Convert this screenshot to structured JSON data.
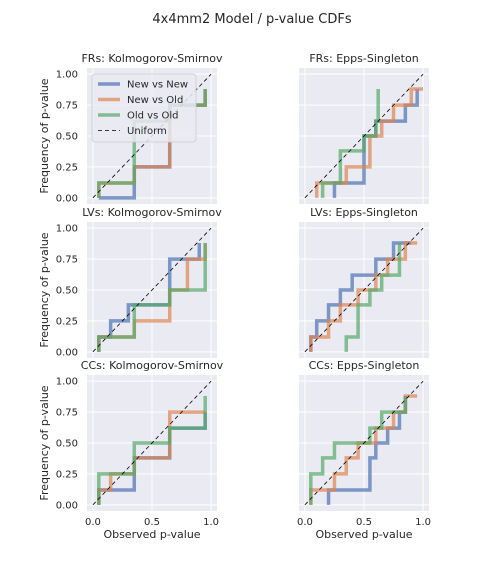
{
  "figure_title": "4x4mm2 Model / p-value CDFs",
  "y_axis_label": "Frequency of p-value",
  "x_axis_label": "Observed p-value",
  "x_tick_labels": [
    "0.0",
    "0.5",
    "1.0"
  ],
  "y_tick_labels": [
    "0.00",
    "0.25",
    "0.50",
    "0.75",
    "1.00"
  ],
  "legend": [
    {
      "label": "New vs New",
      "color": "#4c72b0"
    },
    {
      "label": "New vs Old",
      "color": "#dd8452"
    },
    {
      "label": "Old vs Old",
      "color": "#55a868"
    },
    {
      "label": "Uniform",
      "color": "#000000"
    }
  ],
  "chart_data": [
    {
      "type": "line",
      "title": "FRs: Kolmogorov-Smirnov",
      "xlim": [
        -0.05,
        1.05
      ],
      "ylim": [
        -0.05,
        1.05
      ],
      "series": [
        {
          "name": "New vs New",
          "color": "#4c72b0",
          "x": [
            0.05,
            0.35,
            0.65,
            0.95
          ],
          "y": [
            0.0,
            0.25,
            0.75,
            0.88
          ]
        },
        {
          "name": "New vs Old",
          "color": "#dd8452",
          "x": [
            0.05,
            0.35,
            0.65,
            0.65,
            0.95
          ],
          "y": [
            0.12,
            0.25,
            0.62,
            0.75,
            0.88
          ]
        },
        {
          "name": "Old vs Old",
          "color": "#55a868",
          "x": [
            0.05,
            0.35,
            0.65,
            0.95
          ],
          "y": [
            0.12,
            0.62,
            0.75,
            0.88
          ]
        },
        {
          "name": "Uniform",
          "color": "#000000",
          "x": [
            0,
            1
          ],
          "y": [
            0,
            1
          ]
        }
      ]
    },
    {
      "type": "line",
      "title": "FRs: Epps-Singleton",
      "xlim": [
        -0.05,
        1.05
      ],
      "ylim": [
        -0.05,
        1.05
      ],
      "series": [
        {
          "name": "New vs New",
          "color": "#4c72b0",
          "x": [
            0.25,
            0.5,
            0.6,
            0.85,
            0.95
          ],
          "y": [
            0.12,
            0.5,
            0.62,
            0.75,
            0.88
          ]
        },
        {
          "name": "New vs Old",
          "color": "#dd8452",
          "x": [
            0.1,
            0.35,
            0.55,
            0.65,
            0.75,
            0.9,
            1.0
          ],
          "y": [
            0.12,
            0.25,
            0.5,
            0.62,
            0.75,
            0.88,
            0.88
          ]
        },
        {
          "name": "Old vs Old",
          "color": "#55a868",
          "x": [
            0.15,
            0.3,
            0.5,
            0.6,
            0.62
          ],
          "y": [
            0.12,
            0.38,
            0.5,
            0.62,
            0.88
          ]
        },
        {
          "name": "Uniform",
          "color": "#000000",
          "x": [
            0,
            1
          ],
          "y": [
            0,
            1
          ]
        }
      ]
    },
    {
      "type": "line",
      "title": "LVs: Kolmogorov-Smirnov",
      "xlim": [
        -0.05,
        1.05
      ],
      "ylim": [
        -0.05,
        1.05
      ],
      "series": [
        {
          "name": "New vs New",
          "color": "#4c72b0",
          "x": [
            0.05,
            0.15,
            0.3,
            0.65,
            0.9
          ],
          "y": [
            0.12,
            0.25,
            0.38,
            0.75,
            0.88
          ]
        },
        {
          "name": "New vs Old",
          "color": "#dd8452",
          "x": [
            0.05,
            0.35,
            0.65,
            0.8,
            0.95
          ],
          "y": [
            0.12,
            0.25,
            0.5,
            0.75,
            0.88
          ]
        },
        {
          "name": "Old vs Old",
          "color": "#55a868",
          "x": [
            0.05,
            0.35,
            0.65,
            0.95
          ],
          "y": [
            0.12,
            0.38,
            0.5,
            0.88
          ]
        },
        {
          "name": "Uniform",
          "color": "#000000",
          "x": [
            0,
            1
          ],
          "y": [
            0,
            1
          ]
        }
      ]
    },
    {
      "type": "line",
      "title": "LVs: Epps-Singleton",
      "xlim": [
        -0.05,
        1.05
      ],
      "ylim": [
        -0.05,
        1.05
      ],
      "series": [
        {
          "name": "New vs New",
          "color": "#4c72b0",
          "x": [
            0.05,
            0.1,
            0.2,
            0.3,
            0.35,
            0.4,
            0.6,
            0.65,
            0.75,
            0.9
          ],
          "y": [
            0.12,
            0.25,
            0.38,
            0.5,
            0.5,
            0.62,
            0.75,
            0.75,
            0.88,
            0.88
          ]
        },
        {
          "name": "New vs Old",
          "color": "#dd8452",
          "x": [
            0.05,
            0.2,
            0.3,
            0.45,
            0.6,
            0.7,
            0.85,
            0.95
          ],
          "y": [
            0.12,
            0.25,
            0.38,
            0.5,
            0.62,
            0.75,
            0.88,
            0.88
          ]
        },
        {
          "name": "Old vs Old",
          "color": "#55a868",
          "x": [
            0.35,
            0.45,
            0.55,
            0.65,
            0.8
          ],
          "y": [
            0.12,
            0.38,
            0.5,
            0.62,
            0.88
          ]
        },
        {
          "name": "Uniform",
          "color": "#000000",
          "x": [
            0,
            1
          ],
          "y": [
            0,
            1
          ]
        }
      ]
    },
    {
      "type": "line",
      "title": "CCs: Kolmogorov-Smirnov",
      "xlim": [
        -0.05,
        1.05
      ],
      "ylim": [
        -0.05,
        1.05
      ],
      "series": [
        {
          "name": "New vs New",
          "color": "#4c72b0",
          "x": [
            0.05,
            0.35,
            0.65,
            0.95
          ],
          "y": [
            0.12,
            0.38,
            0.62,
            0.75
          ]
        },
        {
          "name": "New vs Old",
          "color": "#dd8452",
          "x": [
            0.05,
            0.15,
            0.35,
            0.65,
            0.95
          ],
          "y": [
            0.12,
            0.25,
            0.38,
            0.75,
            0.75
          ]
        },
        {
          "name": "Old vs Old",
          "color": "#55a868",
          "x": [
            0.05,
            0.35,
            0.65,
            0.95
          ],
          "y": [
            0.25,
            0.5,
            0.62,
            0.88
          ]
        },
        {
          "name": "Uniform",
          "color": "#000000",
          "x": [
            0,
            1
          ],
          "y": [
            0,
            1
          ]
        }
      ]
    },
    {
      "type": "line",
      "title": "CCs: Epps-Singleton",
      "xlim": [
        -0.05,
        1.05
      ],
      "ylim": [
        -0.05,
        1.05
      ],
      "series": [
        {
          "name": "New vs New",
          "color": "#4c72b0",
          "x": [
            0.2,
            0.55,
            0.6,
            0.7,
            0.8,
            0.85
          ],
          "y": [
            0.12,
            0.38,
            0.5,
            0.62,
            0.75,
            0.88
          ]
        },
        {
          "name": "New vs Old",
          "color": "#dd8452",
          "x": [
            0.05,
            0.25,
            0.35,
            0.45,
            0.6,
            0.75,
            0.85,
            0.95
          ],
          "y": [
            0.12,
            0.25,
            0.38,
            0.5,
            0.62,
            0.75,
            0.88,
            0.88
          ]
        },
        {
          "name": "Old vs Old",
          "color": "#55a868",
          "x": [
            0.05,
            0.15,
            0.25,
            0.55,
            0.65,
            0.85
          ],
          "y": [
            0.25,
            0.38,
            0.5,
            0.62,
            0.75,
            0.88
          ]
        },
        {
          "name": "Uniform",
          "color": "#000000",
          "x": [
            0,
            1
          ],
          "y": [
            0,
            1
          ]
        }
      ]
    }
  ]
}
